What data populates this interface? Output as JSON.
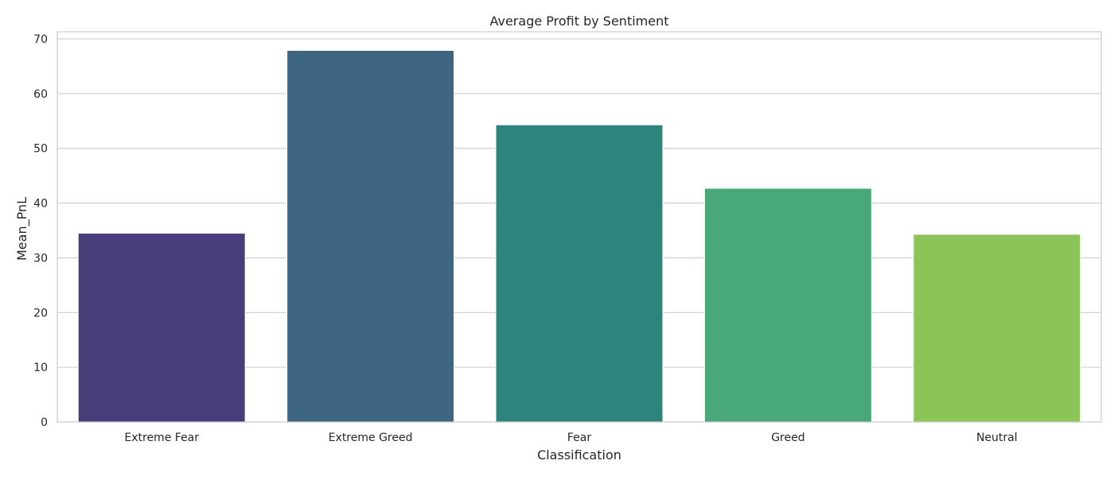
{
  "chart_data": {
    "type": "bar",
    "title": "Average Profit by Sentiment",
    "xlabel": "Classification",
    "ylabel": "Mean_PnL",
    "categories": [
      "Extreme Fear",
      "Extreme Greed",
      "Fear",
      "Greed",
      "Neutral"
    ],
    "values": [
      34.5,
      67.9,
      54.3,
      42.7,
      34.3
    ],
    "colors": [
      "#483d7a",
      "#3e6582",
      "#2e837c",
      "#48a878",
      "#8cc457"
    ],
    "ylim": [
      0,
      71.3
    ],
    "yticks": [
      0,
      10,
      20,
      30,
      40,
      50,
      60,
      70
    ],
    "grid": "horizontal",
    "legend": "none",
    "style": {
      "grid_color": "#cccccc",
      "bar_edge_color": "#ffffff",
      "text_color": "#262626"
    }
  }
}
